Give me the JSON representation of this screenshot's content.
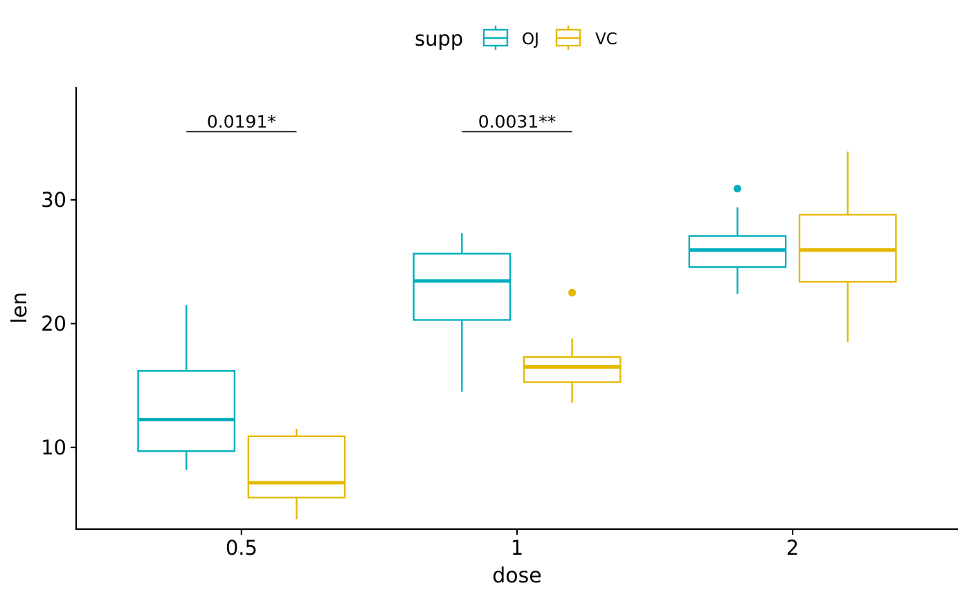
{
  "chart_data": {
    "type": "boxplot",
    "title": "",
    "xlabel": "dose",
    "ylabel": "len",
    "categories": [
      "0.5",
      "1",
      "2"
    ],
    "yticks": [
      10,
      20,
      30
    ],
    "ylim": [
      3.4,
      39.1
    ],
    "legend": {
      "title": "supp",
      "position": "top",
      "entries": [
        {
          "name": "OJ",
          "color": "#00AFBB"
        },
        {
          "name": "VC",
          "color": "#E7B800"
        }
      ]
    },
    "series": [
      {
        "name": "OJ",
        "color": "#00AFBB",
        "boxes": [
          {
            "category": "0.5",
            "whisker_low": 8.2,
            "q1": 9.7,
            "median": 12.25,
            "q3": 16.18,
            "whisker_high": 21.5,
            "outliers": []
          },
          {
            "category": "1",
            "whisker_low": 14.5,
            "q1": 20.3,
            "median": 23.45,
            "q3": 25.65,
            "whisker_high": 27.3,
            "outliers": []
          },
          {
            "category": "2",
            "whisker_low": 22.4,
            "q1": 24.57,
            "median": 25.95,
            "q3": 27.07,
            "whisker_high": 29.4,
            "outliers": [
              30.9
            ]
          }
        ]
      },
      {
        "name": "VC",
        "color": "#E7B800",
        "boxes": [
          {
            "category": "0.5",
            "whisker_low": 4.2,
            "q1": 5.95,
            "median": 7.15,
            "q3": 10.9,
            "whisker_high": 11.5,
            "outliers": []
          },
          {
            "category": "1",
            "whisker_low": 13.6,
            "q1": 15.27,
            "median": 16.5,
            "q3": 17.3,
            "whisker_high": 18.8,
            "outliers": [
              22.5
            ]
          },
          {
            "category": "2",
            "whisker_low": 18.5,
            "q1": 23.38,
            "median": 25.95,
            "q3": 28.8,
            "whisker_high": 33.9,
            "outliers": []
          }
        ]
      }
    ],
    "annotations": [
      {
        "category": "0.5",
        "label": "0.0191*",
        "y": 35.5
      },
      {
        "category": "1",
        "label": "0.0031**",
        "y": 35.5
      }
    ]
  }
}
